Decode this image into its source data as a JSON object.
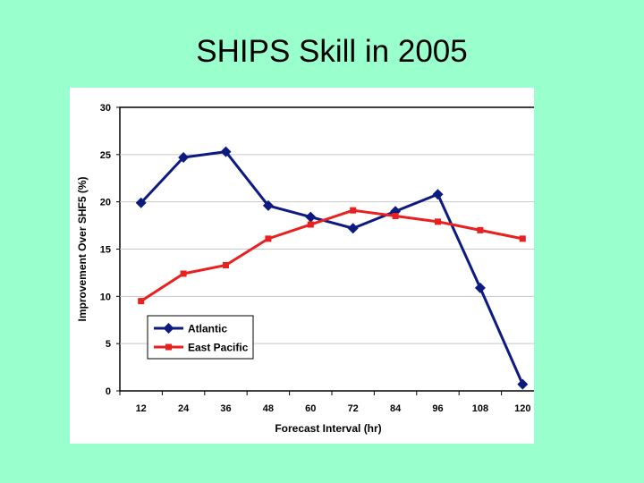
{
  "slide": {
    "title": "SHIPS Skill in 2005"
  },
  "colors": {
    "background": "#99ffcc",
    "atlantic": "#0d1a80",
    "east_pacific": "#e82020",
    "grid": "#c8c8c8"
  },
  "chart_data": {
    "type": "line",
    "title": "",
    "xlabel": "Forecast Interval (hr)",
    "ylabel": "Improvement Over SHF5 (%)",
    "categories": [
      "12",
      "24",
      "36",
      "48",
      "60",
      "72",
      "84",
      "96",
      "108",
      "120"
    ],
    "ylim": [
      0,
      30
    ],
    "yticks": [
      0,
      5,
      10,
      15,
      20,
      25,
      30
    ],
    "grid": "horizontal",
    "legend_position": "bottom-left",
    "series": [
      {
        "name": "Atlantic",
        "marker": "diamond",
        "color": "#0d1a80",
        "values": [
          19.9,
          24.7,
          25.3,
          19.6,
          18.4,
          17.2,
          19.0,
          20.8,
          10.9,
          0.7
        ]
      },
      {
        "name": "East Pacific",
        "marker": "square",
        "color": "#e82020",
        "values": [
          9.5,
          12.4,
          13.3,
          16.1,
          17.6,
          19.1,
          18.5,
          17.9,
          17.0,
          16.1
        ]
      }
    ]
  }
}
